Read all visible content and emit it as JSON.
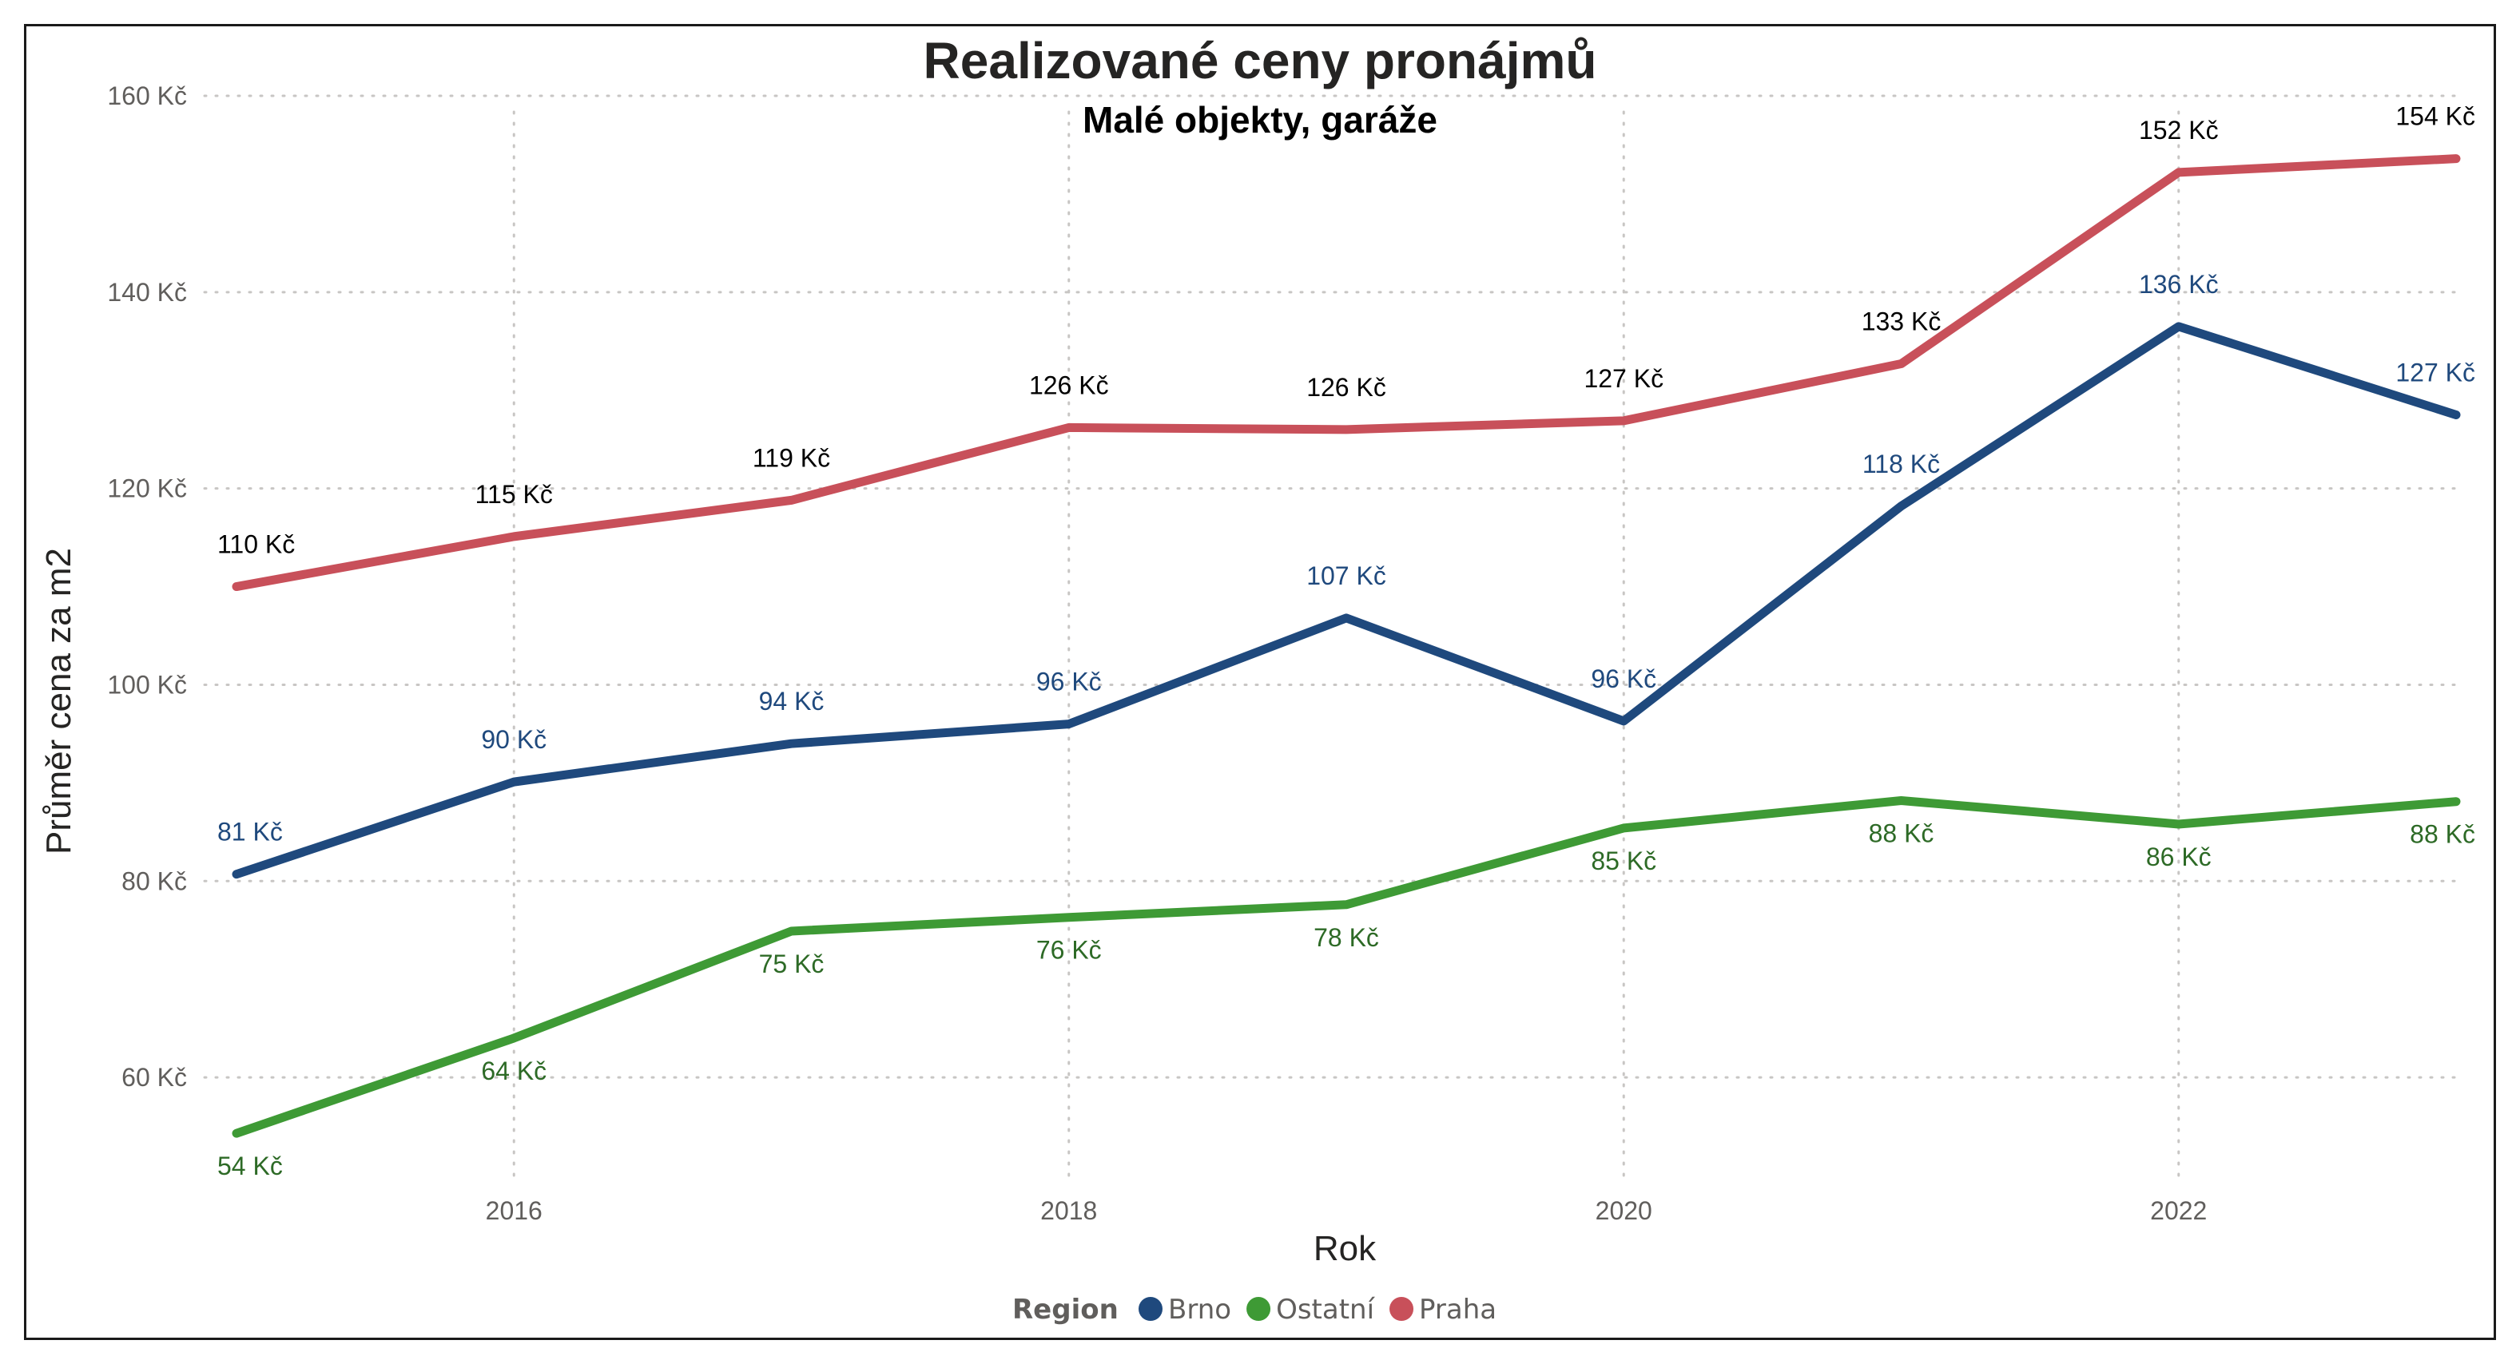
{
  "colors": {
    "Brno": "#1f497d",
    "Ostatní": "#3e9a35",
    "Praha": "#c8505a",
    "label_Brno": "#1f497d",
    "label_Ostatní": "#2d6a26",
    "label_Praha": "#000000"
  },
  "legend": {
    "title": "Region",
    "items": [
      "Brno",
      "Ostatní",
      "Praha"
    ]
  },
  "chart_data": {
    "type": "line",
    "title": "Realizované ceny pronájmů",
    "subtitle": "Malé objekty, garáže",
    "xlabel": "Rok",
    "ylabel": "Průměr cena za m2",
    "x": [
      2015,
      2016,
      2017,
      2018,
      2019,
      2020,
      2021,
      2022,
      2023
    ],
    "x_ticks": [
      2016,
      2018,
      2020,
      2022
    ],
    "x_tick_labels": [
      "2016",
      "2018",
      "2020",
      "2022"
    ],
    "xlim": [
      2015,
      2023
    ],
    "ylim": [
      50,
      160
    ],
    "y_ticks": [
      60,
      80,
      100,
      120,
      140,
      160
    ],
    "y_tick_labels": [
      "60 Kč",
      "80 Kč",
      "100 Kč",
      "120 Kč",
      "140 Kč",
      "160 Kč"
    ],
    "grid": true,
    "legend_position": "bottom-center",
    "series": [
      {
        "name": "Brno",
        "values": [
          80.7,
          90.1,
          94.0,
          96.0,
          106.8,
          96.3,
          118.2,
          136.5,
          127.5
        ],
        "labels": [
          "81 Kč",
          "90 Kč",
          "94 Kč",
          "96 Kč",
          "107 Kč",
          "96 Kč",
          "118 Kč",
          "136 Kč",
          "127 Kč"
        ]
      },
      {
        "name": "Ostatní",
        "values": [
          54.3,
          64.0,
          74.9,
          76.3,
          77.6,
          85.4,
          88.2,
          85.8,
          88.1
        ],
        "labels": [
          "54 Kč",
          "64 Kč",
          "75 Kč",
          "76 Kč",
          "78 Kč",
          "85 Kč",
          "88 Kč",
          "86 Kč",
          "88 Kč"
        ]
      },
      {
        "name": "Praha",
        "values": [
          110.0,
          115.1,
          118.8,
          126.2,
          126.0,
          126.9,
          132.7,
          152.2,
          153.6
        ],
        "labels": [
          "110 Kč",
          "115 Kč",
          "119 Kč",
          "126 Kč",
          "126 Kč",
          "127 Kč",
          "133 Kč",
          "152 Kč",
          "154 Kč"
        ]
      }
    ]
  }
}
